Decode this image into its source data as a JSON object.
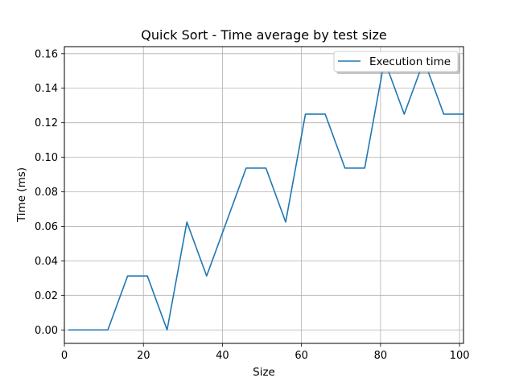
{
  "chart_data": {
    "type": "line",
    "title": "Quick Sort - Time average by test size",
    "xlabel": "Size",
    "ylabel": "Time (ms)",
    "xlim": [
      0,
      101
    ],
    "ylim": [
      -0.0078,
      0.1641
    ],
    "xticks": [
      0,
      20,
      40,
      60,
      80,
      100
    ],
    "yticks": [
      0.0,
      0.02,
      0.04,
      0.06,
      0.08,
      0.1,
      0.12,
      0.14,
      0.16
    ],
    "ytick_labels": [
      "0.00",
      "0.02",
      "0.04",
      "0.06",
      "0.08",
      "0.10",
      "0.12",
      "0.14",
      "0.16"
    ],
    "grid": true,
    "legend_position": "top-right",
    "series": [
      {
        "name": "Execution time",
        "color": "#1f77b4",
        "x": [
          1,
          6,
          11,
          16,
          21,
          26,
          31,
          36,
          41,
          46,
          51,
          56,
          61,
          66,
          71,
          76,
          81,
          86,
          91,
          96,
          101
        ],
        "y": [
          0.0,
          0.0,
          0.0,
          0.03125,
          0.03125,
          0.0,
          0.0625,
          0.03125,
          0.0625,
          0.09375,
          0.09375,
          0.0625,
          0.125,
          0.125,
          0.09375,
          0.09375,
          0.15625,
          0.125,
          0.15625,
          0.125,
          0.125
        ]
      }
    ]
  }
}
